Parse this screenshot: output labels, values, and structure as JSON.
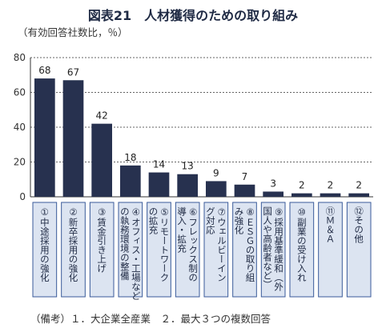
{
  "title": "図表21　人材獲得のための取り組み",
  "unit_label": "（有効回答社数比，％）",
  "note": "（備考）１．大企業全産業　２．最大３つの複数回答",
  "colors": {
    "bar": "#27314f",
    "label_box": "#dce4f1",
    "label_border": "#3a5a9a"
  },
  "chart_data": {
    "type": "bar",
    "categories": [
      "①中途採用の強化",
      "②新卒採用の強化",
      "③賃金引き上げ",
      "④オフィス・工場などの執務環境の整備",
      "⑤リモートワークの拡充",
      "⑥フレックス制の導入・拡充",
      "⑦ウェルビーイング対応",
      "⑧ＥＳＧの取り組み強化",
      "⑨採用基準緩和（外国人や高齢者など）",
      "⑩副業の受け入れ",
      "⑪Ｍ＆Ａ",
      "⑫その他"
    ],
    "category_lines": [
      [
        "①中途採用の強化"
      ],
      [
        "②新卒採用の強化"
      ],
      [
        "③賃金引き上げ"
      ],
      [
        "④オフィス・工場など",
        "の執務環境の整備"
      ],
      [
        "⑤リモートワーク",
        "の拡充"
      ],
      [
        "⑥フレックス制の",
        "導入・拡充"
      ],
      [
        "⑦ウェルビーイン",
        "グ対応"
      ],
      [
        "⑧ＥＳＧの取り組",
        "み強化"
      ],
      [
        "⑨採用基準緩和（外",
        "国人や高齢者など）"
      ],
      [
        "⑩副業の受け入れ"
      ],
      [
        "⑪Ｍ＆Ａ"
      ],
      [
        "⑫その他"
      ]
    ],
    "values": [
      68,
      67,
      42,
      18,
      14,
      13,
      9,
      7,
      3,
      2,
      2,
      2
    ],
    "yticks": [
      0,
      20,
      40,
      60,
      80
    ],
    "ylim": [
      0,
      80
    ],
    "grid": true
  }
}
